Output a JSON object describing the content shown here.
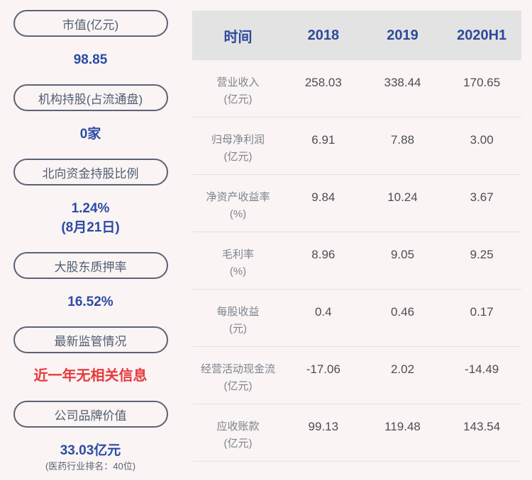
{
  "colors": {
    "page_bg": "#faf4f4",
    "pill_border": "#5a6374",
    "pill_text": "#515e72",
    "value_blue": "#2b4ba5",
    "alert_red": "#e8393c",
    "header_bg": "#e3e3e3",
    "header_text": "#2d4a9b",
    "row_label_gray": "#7d838d",
    "row_value_gray": "#4c4e52"
  },
  "sidebar": {
    "items": [
      {
        "label": "市值(亿元)",
        "value_lines": [
          {
            "text": "98.85",
            "style": "blue"
          }
        ]
      },
      {
        "label": "机构持股(占流通盘)",
        "value_lines": [
          {
            "text": "0家",
            "style": "blue"
          }
        ]
      },
      {
        "label": "北向资金持股比例",
        "value_lines": [
          {
            "text": "1.24%",
            "style": "blue"
          },
          {
            "text": "(8月21日)",
            "style": "blue"
          }
        ]
      },
      {
        "label": "大股东质押率",
        "value_lines": [
          {
            "text": "16.52%",
            "style": "blue"
          }
        ]
      },
      {
        "label": "最新监管情况",
        "value_lines": [
          {
            "text": "近一年无相关信息",
            "style": "red"
          }
        ]
      },
      {
        "label": "公司品牌价值",
        "value_lines": [
          {
            "text": "33.03亿元",
            "style": "blue"
          },
          {
            "text": "(医药行业排名：40位)",
            "style": "small"
          }
        ]
      }
    ]
  },
  "table": {
    "columns": [
      "时间",
      "2018",
      "2019",
      "2020H1"
    ],
    "rows": [
      {
        "name": "营业收入",
        "unit": "(亿元)",
        "values": [
          "258.03",
          "338.44",
          "170.65"
        ]
      },
      {
        "name": "归母净利润",
        "unit": "(亿元)",
        "values": [
          "6.91",
          "7.88",
          "3.00"
        ]
      },
      {
        "name": "净资产收益率",
        "unit": "(%)",
        "values": [
          "9.84",
          "10.24",
          "3.67"
        ]
      },
      {
        "name": "毛利率",
        "unit": "(%)",
        "values": [
          "8.96",
          "9.05",
          "9.25"
        ]
      },
      {
        "name": "每股收益",
        "unit": "(元)",
        "values": [
          "0.4",
          "0.46",
          "0.17"
        ]
      },
      {
        "name": "经营活动现金流",
        "unit": "(亿元)",
        "values": [
          "-17.06",
          "2.02",
          "-14.49"
        ]
      },
      {
        "name": "应收账款",
        "unit": "(亿元)",
        "values": [
          "99.13",
          "119.48",
          "143.54"
        ]
      }
    ]
  }
}
